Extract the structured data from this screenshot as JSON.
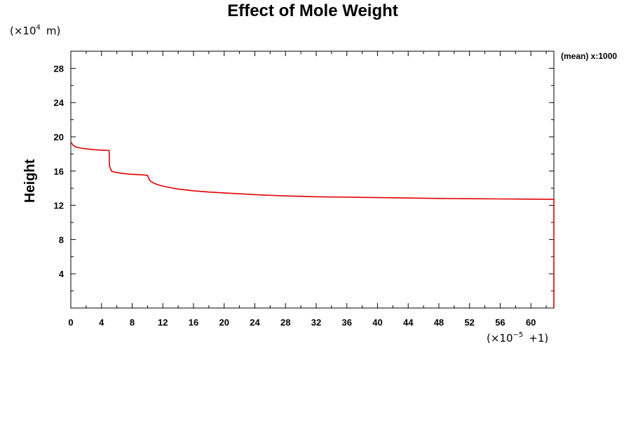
{
  "chart_data": {
    "type": "line",
    "title": "Effect of Mole Weight",
    "ylabel": "Height",
    "xlabel": "",
    "y_unit": "m",
    "y_scale_base": "10",
    "y_scale_exp": "4",
    "x_scale_base": "10",
    "x_scale_exp": "−5",
    "x_scale_offset": "+1",
    "annotation": "(mean) x:1000",
    "xlim": [
      0,
      63
    ],
    "ylim": [
      0,
      30
    ],
    "x_ticks": [
      0,
      4,
      8,
      12,
      16,
      20,
      24,
      28,
      32,
      36,
      40,
      44,
      48,
      52,
      56,
      60
    ],
    "y_ticks": [
      4,
      8,
      12,
      16,
      20,
      24,
      28
    ],
    "grid": false,
    "legend": "none",
    "series": [
      {
        "color": "#e00000",
        "x": [
          0,
          0.3,
          0.7,
          1.2,
          2,
          3,
          4,
          5,
          5.05,
          5.3,
          5.8,
          6.5,
          7.5,
          8.5,
          9.5,
          10,
          10.3,
          10.8,
          11.5,
          12.5,
          14,
          16,
          18,
          20,
          24,
          28,
          32,
          36,
          40,
          44,
          48,
          52,
          56,
          60,
          63
        ],
        "y": [
          19.4,
          19.0,
          18.8,
          18.7,
          18.6,
          18.5,
          18.45,
          18.4,
          16.6,
          16.0,
          15.85,
          15.75,
          15.65,
          15.6,
          15.55,
          15.5,
          14.9,
          14.6,
          14.35,
          14.15,
          13.9,
          13.7,
          13.55,
          13.45,
          13.25,
          13.1,
          13.0,
          12.95,
          12.9,
          12.85,
          12.8,
          12.77,
          12.75,
          12.72,
          12.7
        ]
      }
    ]
  }
}
